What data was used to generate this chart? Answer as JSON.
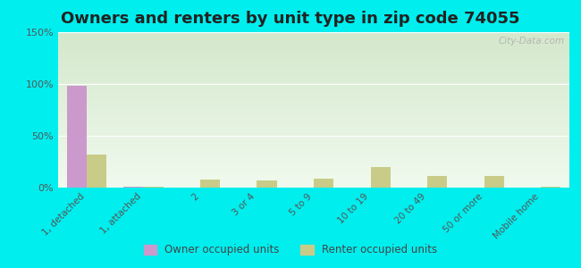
{
  "title": "Owners and renters by unit type in zip code 74055",
  "categories": [
    "1, detached",
    "1, attached",
    "2",
    "3 or 4",
    "5 to 9",
    "10 to 19",
    "20 to 49",
    "50 or more",
    "Mobile home"
  ],
  "owner_values": [
    98,
    1,
    0,
    0,
    0,
    0,
    0,
    0,
    0
  ],
  "renter_values": [
    32,
    1,
    8,
    7,
    9,
    20,
    11,
    11,
    1
  ],
  "owner_color": "#cc99cc",
  "renter_color": "#c8cc88",
  "ylim": [
    0,
    150
  ],
  "yticks": [
    0,
    50,
    100,
    150
  ],
  "ytick_labels": [
    "0%",
    "50%",
    "100%",
    "150%"
  ],
  "bg_top": "#d4e8cc",
  "bg_bottom": "#f0faee",
  "outer_bg": "#00eeee",
  "title_fontsize": 13,
  "watermark": "City-Data.com",
  "legend_owner": "Owner occupied units",
  "legend_renter": "Renter occupied units"
}
